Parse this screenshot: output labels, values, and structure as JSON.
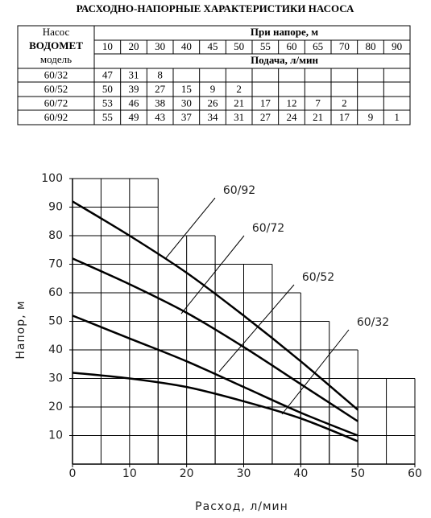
{
  "title": "РАСХОДНО-НАПОРНЫЕ ХАРАКТЕРИСТИКИ НАСОСА",
  "table": {
    "pump": "Насос",
    "brand": "ВОДОМЕТ",
    "model": "модель",
    "head_label": "При напоре, м",
    "heads": [
      10,
      20,
      30,
      40,
      45,
      50,
      55,
      60,
      65,
      70,
      80,
      90
    ],
    "flow_label": "Подача, л/мин",
    "rows": [
      {
        "model": "60/32",
        "values": [
          47,
          31,
          8
        ]
      },
      {
        "model": "60/52",
        "values": [
          50,
          39,
          27,
          15,
          9,
          2
        ]
      },
      {
        "model": "60/72",
        "values": [
          53,
          46,
          38,
          30,
          26,
          21,
          17,
          12,
          7,
          2
        ]
      },
      {
        "model": "60/92",
        "values": [
          55,
          49,
          43,
          37,
          34,
          31,
          27,
          24,
          21,
          17,
          9,
          1
        ]
      }
    ]
  },
  "chart_data": {
    "type": "line",
    "xlabel": "Расход, л/мин",
    "ylabel": "Напор, м",
    "x": [
      0,
      10,
      20,
      30,
      40,
      50
    ],
    "xlim": [
      0,
      60
    ],
    "xticks": [
      0,
      10,
      20,
      30,
      40,
      50,
      60
    ],
    "ylim": [
      0,
      100
    ],
    "yticks": [
      10,
      20,
      30,
      40,
      50,
      60,
      70,
      80,
      90,
      100
    ],
    "series": [
      {
        "name": "60/92",
        "color": "#000000",
        "values": [
          92,
          80,
          67,
          52,
          36,
          19
        ]
      },
      {
        "name": "60/72",
        "color": "#000000",
        "values": [
          72,
          63,
          53,
          41,
          28,
          15
        ]
      },
      {
        "name": "60/52",
        "color": "#000000",
        "values": [
          52,
          44,
          36,
          27,
          18,
          10
        ]
      },
      {
        "name": "60/32",
        "color": "#000000",
        "values": [
          32,
          30,
          27,
          22,
          16,
          8
        ]
      }
    ]
  }
}
